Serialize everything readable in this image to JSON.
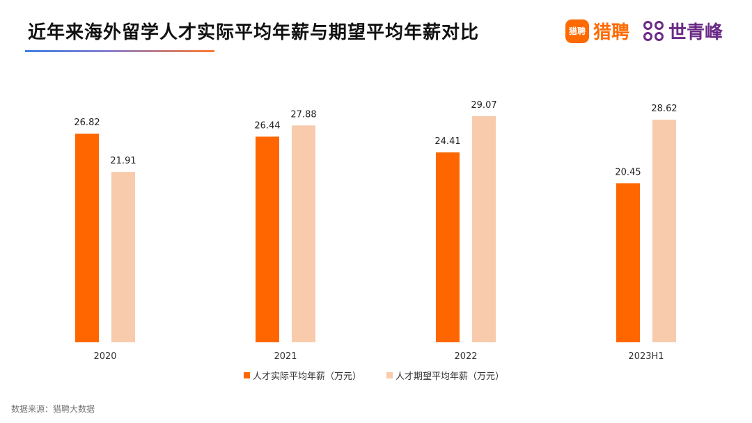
{
  "title": "近年来海外留学人才实际平均年薪与期望平均年薪对比",
  "logos": {
    "liepin_badge": "猎聘",
    "liepin_text": "猎聘",
    "sqf_text": "世青峰",
    "sqf_icon": "four-circles-icon"
  },
  "colors": {
    "actual": "#ff6600",
    "expected": "#f8cbad"
  },
  "chart_data": {
    "type": "bar",
    "categories": [
      "2020",
      "2021",
      "2022",
      "2023H1"
    ],
    "series": [
      {
        "name": "人才实际平均年薪（万元）",
        "values": [
          26.82,
          26.44,
          24.41,
          20.45
        ]
      },
      {
        "name": "人才期望平均年薪（万元）",
        "values": [
          21.91,
          27.88,
          29.07,
          28.62
        ]
      }
    ],
    "ylim": [
      0,
      29.07
    ],
    "grid": false,
    "legend_position": "bottom"
  },
  "source": "数据来源：猎聘大数据"
}
